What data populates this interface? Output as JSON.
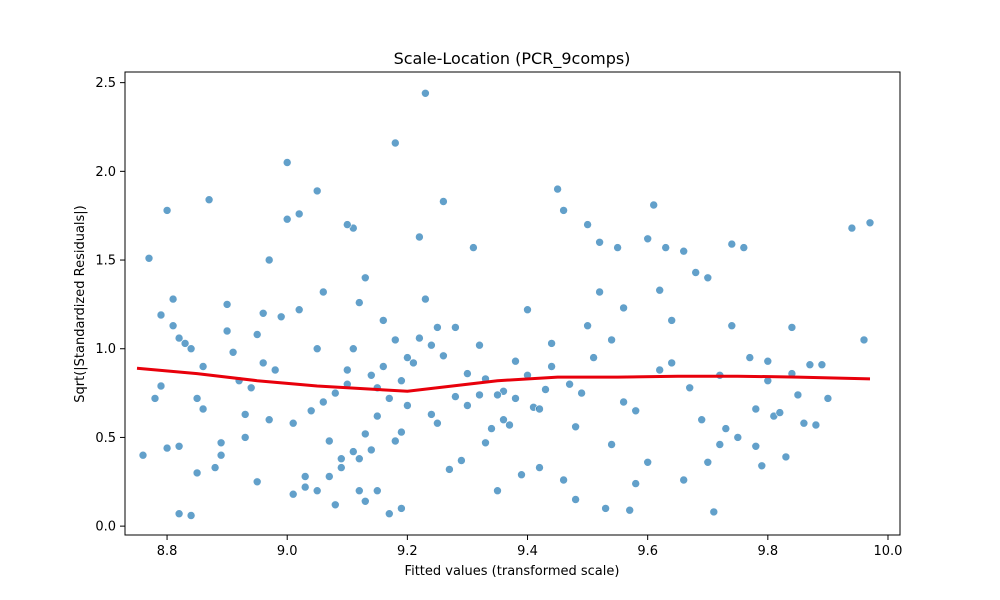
{
  "chart_data": {
    "type": "scatter",
    "title": "Scale-Location (PCR_9comps)",
    "xlabel": "Fitted values (transformed scale)",
    "ylabel": "Sqrt(|Standardized Residuals|)",
    "xlim": [
      8.73,
      10.02
    ],
    "ylim": [
      -0.05,
      2.56
    ],
    "xticks": [
      8.8,
      9.0,
      9.2,
      9.4,
      9.6,
      9.8,
      10.0
    ],
    "xtick_labels": [
      "8.8",
      "9.0",
      "9.2",
      "9.4",
      "9.6",
      "9.8",
      "10.0"
    ],
    "yticks": [
      0.0,
      0.5,
      1.0,
      1.5,
      2.0,
      2.5
    ],
    "ytick_labels": [
      "0.0",
      "0.5",
      "1.0",
      "1.5",
      "2.0",
      "2.5"
    ],
    "grid": false,
    "point_color": "#1f77b4",
    "line_color": "#e8000b",
    "trend_line": {
      "x": [
        8.75,
        8.85,
        8.95,
        9.05,
        9.15,
        9.2,
        9.25,
        9.35,
        9.45,
        9.55,
        9.65,
        9.75,
        9.85,
        9.97
      ],
      "y": [
        0.89,
        0.86,
        0.82,
        0.79,
        0.77,
        0.76,
        0.78,
        0.82,
        0.84,
        0.84,
        0.845,
        0.845,
        0.84,
        0.83
      ]
    },
    "points": {
      "x": [
        8.76,
        8.77,
        8.79,
        8.8,
        8.8,
        8.81,
        8.82,
        8.84,
        8.87,
        8.88,
        8.79,
        8.82,
        8.85,
        8.78,
        8.81,
        8.83,
        8.86,
        8.9,
        8.89,
        8.84,
        9.0,
        9.0,
        9.05,
        8.97,
        9.02,
        9.11,
        9.1,
        9.18,
        9.23,
        9.26,
        9.31,
        9.22,
        9.08,
        9.13,
        9.05,
        9.15,
        9.17,
        9.19,
        9.12,
        9.03,
        9.45,
        9.46,
        9.5,
        9.52,
        9.53,
        9.61,
        9.66,
        9.74,
        9.76,
        9.78,
        9.6,
        9.55,
        9.63,
        9.7,
        9.71,
        9.57,
        9.48,
        9.42,
        9.39,
        9.35,
        9.94,
        9.96,
        9.97,
        9.84,
        9.87,
        9.88,
        9.79,
        9.81,
        9.9,
        9.83,
        9.2,
        9.18,
        9.16,
        9.14,
        9.1,
        9.08,
        9.06,
        9.04,
        8.98,
        8.96,
        8.94,
        8.92,
        9.28,
        9.3,
        9.32,
        9.34,
        9.36,
        9.38,
        9.4,
        9.44,
        9.47,
        9.49,
        9.51,
        9.54,
        9.56,
        9.58,
        9.62,
        9.64,
        9.67,
        9.69,
        9.72,
        9.73,
        9.75,
        9.77,
        9.8,
        9.82,
        9.85,
        9.86,
        9.89,
        8.93,
        8.91,
        8.95,
        8.99,
        9.01,
        9.07,
        9.09,
        9.11,
        9.13,
        9.15,
        9.17,
        9.19,
        9.21,
        9.24,
        9.25,
        9.27,
        9.29,
        9.33,
        9.37,
        9.41,
        9.43,
        9.02,
        9.06,
        9.12,
        9.16,
        9.22,
        9.26,
        9.3,
        9.36,
        9.42,
        9.48,
        9.54,
        9.6,
        9.66,
        9.72,
        9.78,
        9.84,
        8.96,
        8.9,
        8.86,
        8.82,
        9.03,
        9.09,
        9.14,
        9.19,
        9.24,
        9.28,
        9.33,
        9.38,
        9.44,
        9.5,
        9.56,
        9.62,
        9.68,
        9.74,
        9.8,
        8.97,
        8.93,
        8.89,
        8.85,
        9.11,
        9.05,
        9.1,
        9.15,
        9.2,
        9.25,
        9.18,
        9.12,
        9.07,
        9.01,
        8.95,
        9.32,
        9.4,
        9.52,
        9.64,
        9.7,
        9.58,
        9.46,
        9.35,
        9.23,
        9.13
      ],
      "y": [
        0.4,
        1.51,
        1.19,
        1.78,
        0.44,
        1.28,
        0.07,
        0.06,
        1.84,
        0.33,
        0.79,
        0.45,
        0.72,
        0.72,
        1.13,
        1.03,
        0.9,
        1.25,
        0.47,
        1.0,
        2.05,
        1.73,
        1.89,
        1.5,
        1.76,
        1.68,
        1.7,
        2.16,
        2.44,
        1.83,
        1.57,
        1.63,
        0.12,
        0.14,
        0.2,
        0.2,
        0.07,
        0.1,
        0.2,
        0.22,
        1.9,
        1.78,
        1.7,
        1.6,
        0.1,
        1.81,
        1.55,
        1.59,
        1.57,
        0.45,
        1.62,
        1.57,
        1.57,
        1.4,
        0.08,
        0.09,
        0.15,
        0.33,
        0.29,
        0.2,
        1.68,
        1.05,
        1.71,
        1.12,
        0.91,
        0.57,
        0.34,
        0.62,
        0.72,
        0.39,
        0.95,
        1.05,
        0.9,
        0.85,
        0.8,
        0.75,
        0.7,
        0.65,
        0.88,
        0.92,
        0.78,
        0.82,
        1.12,
        0.68,
        0.74,
        0.55,
        0.6,
        0.72,
        0.85,
        0.9,
        0.8,
        0.75,
        0.95,
        1.05,
        0.7,
        0.65,
        0.88,
        0.92,
        0.78,
        0.6,
        0.85,
        0.55,
        0.5,
        0.95,
        0.82,
        0.64,
        0.74,
        0.58,
        0.91,
        0.63,
        0.98,
        1.08,
        1.18,
        0.58,
        0.48,
        0.38,
        0.42,
        0.52,
        0.62,
        0.72,
        0.82,
        0.92,
        1.02,
        1.12,
        0.32,
        0.37,
        0.47,
        0.57,
        0.67,
        0.77,
        1.22,
        1.32,
        1.26,
        1.16,
        1.06,
        0.96,
        0.86,
        0.76,
        0.66,
        0.56,
        0.46,
        0.36,
        0.26,
        0.46,
        0.66,
        0.86,
        1.2,
        1.1,
        0.66,
        1.06,
        0.28,
        0.33,
        0.43,
        0.53,
        0.63,
        0.73,
        0.83,
        0.93,
        1.03,
        1.13,
        1.23,
        1.33,
        1.43,
        1.13,
        0.93,
        0.6,
        0.5,
        0.4,
        0.3,
        1.0,
        1.0,
        0.88,
        0.78,
        0.68,
        0.58,
        0.48,
        0.38,
        0.28,
        0.18,
        0.25,
        1.02,
        1.22,
        1.32,
        1.16,
        0.36,
        0.24,
        0.26,
        0.74,
        1.28,
        1.4
      ]
    }
  }
}
